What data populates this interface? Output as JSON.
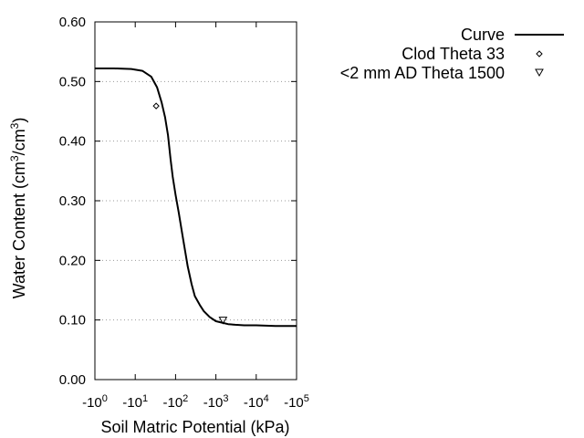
{
  "chart_data": {
    "type": "line",
    "title": "",
    "xlabel": "Soil Matric Potential (kPa)",
    "ylabel": {
      "pre": "Water Content (cm",
      "sup1": "3",
      "mid": "/cm",
      "sup2": "3",
      "post": ")"
    },
    "x_scale": "log",
    "xlim": [
      1,
      100000
    ],
    "ylim": [
      0.0,
      0.6
    ],
    "x_ticks": [
      {
        "value": 1,
        "base": "-10",
        "exp": "0"
      },
      {
        "value": 10,
        "base": "-10",
        "exp": "1"
      },
      {
        "value": 100,
        "base": "-10",
        "exp": "2"
      },
      {
        "value": 1000,
        "base": "-10",
        "exp": "3"
      },
      {
        "value": 10000,
        "base": "-10",
        "exp": "4"
      },
      {
        "value": 100000,
        "base": "-10",
        "exp": "5"
      }
    ],
    "y_ticks": [
      {
        "value": 0.0,
        "label": "0.00"
      },
      {
        "value": 0.1,
        "label": "0.10"
      },
      {
        "value": 0.2,
        "label": "0.20"
      },
      {
        "value": 0.3,
        "label": "0.30"
      },
      {
        "value": 0.4,
        "label": "0.40"
      },
      {
        "value": 0.5,
        "label": "0.50"
      },
      {
        "value": 0.6,
        "label": "0.60"
      }
    ],
    "grid": {
      "horizontal": true,
      "vertical": false,
      "style": "dotted"
    },
    "legend_position": "top-right, outside plot",
    "series": [
      {
        "name": "Curve",
        "kind": "line",
        "color": "#000000",
        "x": [
          1,
          3,
          8,
          15,
          25,
          35,
          45,
          55,
          65,
          75,
          85,
          100,
          120,
          150,
          200,
          250,
          300,
          400,
          500,
          700,
          1000,
          1500,
          2000,
          3000,
          5000,
          10000,
          30000,
          100000
        ],
        "y": [
          0.522,
          0.522,
          0.521,
          0.518,
          0.508,
          0.49,
          0.465,
          0.44,
          0.41,
          0.37,
          0.34,
          0.31,
          0.28,
          0.24,
          0.19,
          0.16,
          0.14,
          0.125,
          0.115,
          0.105,
          0.098,
          0.095,
          0.093,
          0.092,
          0.091,
          0.091,
          0.09,
          0.09
        ]
      },
      {
        "name": "Clod Theta 33",
        "kind": "scatter",
        "marker": "diamond",
        "color": "#000000",
        "x": [
          33
        ],
        "y": [
          0.459
        ]
      },
      {
        "name": "<2 mm AD Theta 1500",
        "kind": "scatter",
        "marker": "triangle-down",
        "color": "#000000",
        "x": [
          1500
        ],
        "y": [
          0.1
        ]
      }
    ]
  }
}
